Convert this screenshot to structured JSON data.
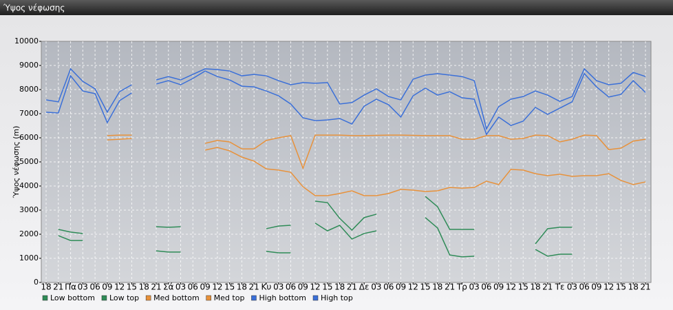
{
  "chart_data": {
    "type": "line",
    "title": "Ύψος νέφωσης",
    "y_label": "Ύψος νέφωσης (m)",
    "categories": [
      "18",
      "21",
      "Πα",
      "03",
      "06",
      "09",
      "12",
      "15",
      "18",
      "21",
      "Σά",
      "03",
      "06",
      "09",
      "12",
      "15",
      "18",
      "21",
      "Κυ",
      "03",
      "06",
      "09",
      "12",
      "15",
      "18",
      "21",
      "Δε",
      "03",
      "06",
      "09",
      "12",
      "15",
      "18",
      "21",
      "Τρ",
      "03",
      "06",
      "09",
      "12",
      "15",
      "18",
      "21",
      "Τε",
      "03",
      "06",
      "09",
      "12",
      "15",
      "18",
      "21"
    ],
    "ylim": [
      0,
      10000
    ],
    "yticks": [
      0,
      1000,
      2000,
      3000,
      4000,
      5000,
      6000,
      7000,
      8000,
      9000,
      10000
    ],
    "grid": true,
    "series": [
      {
        "name": "Low bottom",
        "color": "#2e8b57",
        "values": [
          null,
          1940,
          1740,
          1740,
          null,
          null,
          null,
          null,
          null,
          1310,
          1260,
          1260,
          null,
          null,
          null,
          null,
          null,
          null,
          1290,
          1230,
          1230,
          null,
          2460,
          2140,
          2370,
          1800,
          2030,
          2140,
          null,
          null,
          null,
          2690,
          2260,
          1140,
          1060,
          1090,
          null,
          null,
          null,
          null,
          1370,
          1090,
          1170,
          1170,
          null,
          null,
          null,
          null,
          null,
          null
        ]
      },
      {
        "name": "Low top",
        "color": "#2e8b57",
        "values": [
          null,
          2200,
          2090,
          2030,
          null,
          null,
          null,
          null,
          null,
          2310,
          2290,
          2310,
          null,
          null,
          null,
          null,
          null,
          null,
          2230,
          2340,
          2370,
          null,
          3370,
          3310,
          2660,
          2170,
          2690,
          2830,
          null,
          null,
          null,
          3570,
          3140,
          2200,
          2200,
          2200,
          null,
          null,
          null,
          null,
          1600,
          2230,
          2290,
          2290,
          null,
          null,
          null,
          null,
          null,
          null
        ]
      },
      {
        "name": "Med bottom",
        "color": "#e8913a",
        "values": [
          null,
          null,
          null,
          null,
          null,
          5910,
          5940,
          5970,
          null,
          null,
          null,
          null,
          null,
          5490,
          5600,
          5460,
          5200,
          5030,
          4710,
          4660,
          4570,
          3970,
          3600,
          3600,
          3690,
          3800,
          3600,
          3600,
          3690,
          3860,
          3830,
          3770,
          3800,
          3940,
          3910,
          3940,
          4200,
          4060,
          4690,
          4660,
          4510,
          4430,
          4490,
          4400,
          4430,
          4430,
          4510,
          4230,
          4060,
          4170
        ]
      },
      {
        "name": "Med top",
        "color": "#e8913a",
        "values": [
          null,
          null,
          null,
          null,
          null,
          6090,
          6110,
          6110,
          null,
          null,
          null,
          null,
          null,
          5770,
          5890,
          5830,
          5540,
          5540,
          5890,
          6000,
          6090,
          4740,
          6110,
          6110,
          6110,
          6090,
          6090,
          6100,
          6110,
          6110,
          6100,
          6090,
          6090,
          6090,
          5940,
          5940,
          6090,
          6090,
          5940,
          5970,
          6110,
          6090,
          5830,
          5940,
          6110,
          6090,
          5510,
          5570,
          5860,
          5940
        ]
      },
      {
        "name": "High bottom",
        "color": "#3a6fd8",
        "values": [
          7060,
          7030,
          8570,
          7940,
          7830,
          6630,
          7540,
          7860,
          null,
          8230,
          8370,
          8200,
          8460,
          8770,
          8540,
          8400,
          8140,
          8110,
          7940,
          7740,
          7400,
          6830,
          6710,
          6740,
          6800,
          6570,
          7310,
          7600,
          7370,
          6860,
          7740,
          8060,
          7770,
          7910,
          7660,
          7600,
          6140,
          6860,
          6510,
          6690,
          7260,
          6970,
          7230,
          7490,
          8660,
          8110,
          7690,
          7800,
          8370,
          7880
        ]
      },
      {
        "name": "High top",
        "color": "#3a6fd8",
        "values": [
          7570,
          7490,
          8860,
          8340,
          8030,
          7060,
          7910,
          8200,
          null,
          8400,
          8540,
          8400,
          8630,
          8860,
          8830,
          8770,
          8570,
          8630,
          8570,
          8370,
          8200,
          8290,
          8260,
          8290,
          7400,
          7460,
          7770,
          8030,
          7710,
          7570,
          8430,
          8600,
          8660,
          8600,
          8540,
          8370,
          6370,
          7290,
          7600,
          7710,
          7940,
          7770,
          7510,
          7710,
          8860,
          8370,
          8200,
          8260,
          8710,
          8540
        ]
      }
    ]
  }
}
